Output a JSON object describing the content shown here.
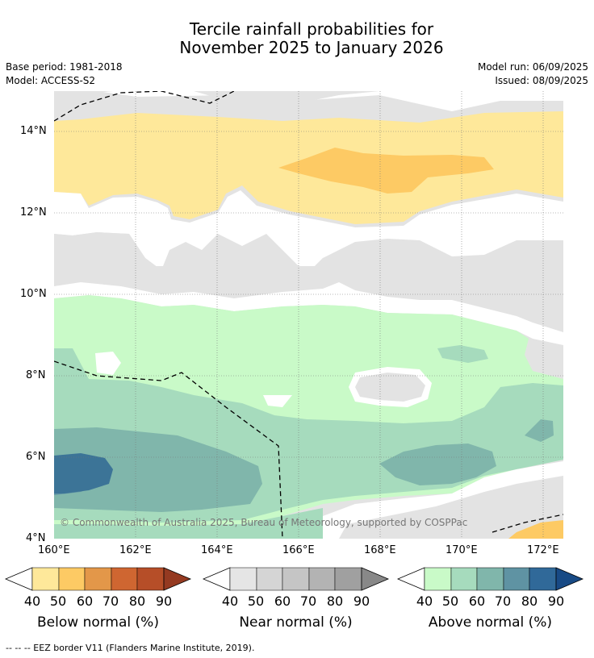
{
  "title_line1": "Tercile rainfall probabilities for",
  "title_line2": "November 2025 to January 2026",
  "base_period": "Base period: 1981-2018",
  "model": "Model: ACCESS-S2",
  "model_run": "Model run: 06/09/2025",
  "issued": "Issued: 08/09/2025",
  "copyright": "© Commonwealth of Australia 2025, Bureau of Meteorology, supported by COSPPac",
  "lat_labels": [
    "14°N",
    "12°N",
    "10°N",
    "8°N",
    "6°N",
    "4°N"
  ],
  "lon_labels": [
    "160°E",
    "162°E",
    "164°E",
    "166°E",
    "168°E",
    "170°E",
    "172°E"
  ],
  "legends": [
    {
      "label": "Below normal (%)",
      "ticks": [
        "40",
        "50",
        "60",
        "70",
        "80",
        "90"
      ],
      "colors": [
        "#fee89a",
        "#fdca64",
        "#e39749",
        "#cf6631",
        "#b64e28",
        "#953a21"
      ]
    },
    {
      "label": "Near normal (%)",
      "ticks": [
        "40",
        "50",
        "60",
        "70",
        "80",
        "90"
      ],
      "colors": [
        "#e5e5e5",
        "#d5d5d5",
        "#c5c5c5",
        "#b3b3b3",
        "#a0a0a0",
        "#888888"
      ]
    },
    {
      "label": "Above normal (%)",
      "ticks": [
        "40",
        "50",
        "60",
        "70",
        "80",
        "90"
      ],
      "colors": [
        "#c9fac8",
        "#a6dbbd",
        "#80b6ab",
        "#5f93a3",
        "#306999",
        "#184a85"
      ]
    }
  ],
  "footnote": "--  --  -- EEZ border V11 (Flanders Marine Institute, 2019)."
}
